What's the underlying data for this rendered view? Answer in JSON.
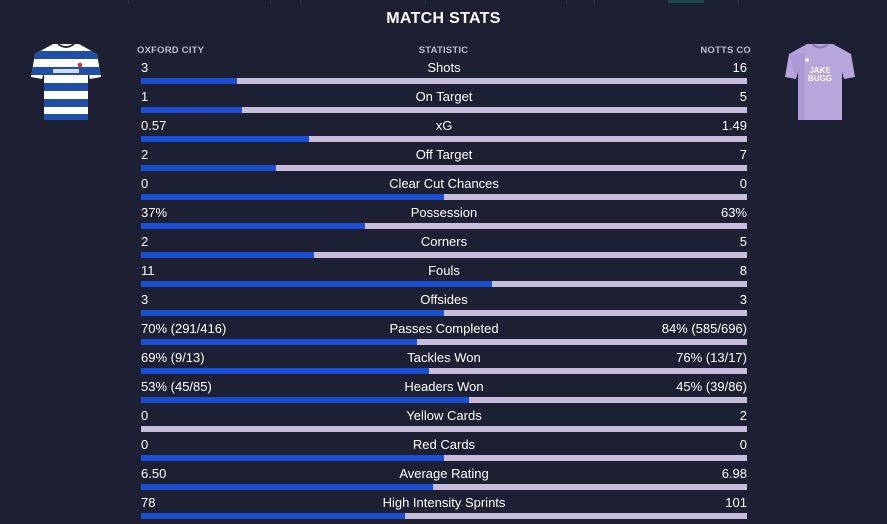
{
  "title": "MATCH STATS",
  "headers": {
    "home": "OXFORD CITY",
    "stat": "STATISTIC",
    "away": "NOTTS CO"
  },
  "kits": {
    "home": {
      "icon": "home-kit-shirt-icon",
      "primary": "#1f4fa8",
      "secondary": "#ffffff"
    },
    "away": {
      "icon": "away-kit-shirt-icon",
      "primary": "#b7a6dc",
      "text": "JAKE BUGG"
    }
  },
  "colors": {
    "background": "#1d2033",
    "home_bar": "#1a4fd4",
    "away_bar": "#c8bcdc"
  },
  "stats": [
    {
      "label": "Shots",
      "home": "3",
      "away": "16",
      "home_share": 0.158
    },
    {
      "label": "On Target",
      "home": "1",
      "away": "5",
      "home_share": 0.167
    },
    {
      "label": "xG",
      "home": "0.57",
      "away": "1.49",
      "home_share": 0.277
    },
    {
      "label": "Off Target",
      "home": "2",
      "away": "7",
      "home_share": 0.222
    },
    {
      "label": "Clear Cut Chances",
      "home": "0",
      "away": "0",
      "home_share": 0.5
    },
    {
      "label": "Possession",
      "home": "37%",
      "away": "63%",
      "home_share": 0.37
    },
    {
      "label": "Corners",
      "home": "2",
      "away": "5",
      "home_share": 0.286
    },
    {
      "label": "Fouls",
      "home": "11",
      "away": "8",
      "home_share": 0.579
    },
    {
      "label": "Offsides",
      "home": "3",
      "away": "3",
      "home_share": 0.5
    },
    {
      "label": "Passes Completed",
      "home": "70% (291/416)",
      "away": "84% (585/696)",
      "home_share": 0.455
    },
    {
      "label": "Tackles Won",
      "home": "69% (9/13)",
      "away": "76% (13/17)",
      "home_share": 0.476
    },
    {
      "label": "Headers Won",
      "home": "53% (45/85)",
      "away": "45% (39/86)",
      "home_share": 0.541
    },
    {
      "label": "Yellow Cards",
      "home": "0",
      "away": "2",
      "home_share": 0.0
    },
    {
      "label": "Red Cards",
      "home": "0",
      "away": "0",
      "home_share": 0.5
    },
    {
      "label": "Average Rating",
      "home": "6.50",
      "away": "6.98",
      "home_share": 0.482
    },
    {
      "label": "High Intensity Sprints",
      "home": "78",
      "away": "101",
      "home_share": 0.436
    }
  ]
}
